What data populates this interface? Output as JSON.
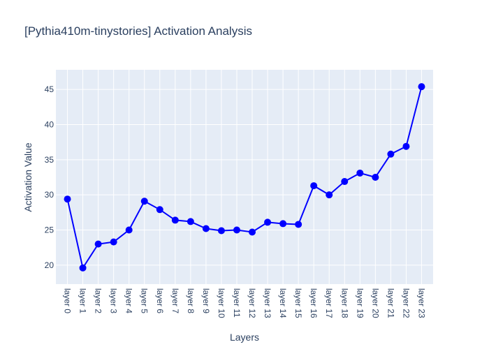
{
  "chart_data": {
    "type": "line",
    "title": "[Pythia410m-tinystories] Activation Analysis",
    "xlabel": "Layers",
    "ylabel": "Activation Value",
    "categories": [
      "layer 0",
      "layer 1",
      "layer 2",
      "layer 3",
      "layer 4",
      "layer 5",
      "layer 6",
      "layer 7",
      "layer 8",
      "layer 9",
      "layer 10",
      "layer 11",
      "layer 12",
      "layer 13",
      "layer 14",
      "layer 15",
      "layer 16",
      "layer 17",
      "layer 18",
      "layer 19",
      "layer 20",
      "layer 21",
      "layer 22",
      "layer 23"
    ],
    "series": [
      {
        "values": [
          29.4,
          19.6,
          23.0,
          23.3,
          25.0,
          29.1,
          27.9,
          26.4,
          26.2,
          25.2,
          24.9,
          25.0,
          24.7,
          26.1,
          25.9,
          25.8,
          31.3,
          30.0,
          31.9,
          33.1,
          32.5,
          35.8,
          36.9,
          45.4
        ]
      }
    ],
    "ylim": [
      17.3,
      47.8
    ],
    "yticks": [
      20,
      25,
      30,
      35,
      40,
      45
    ],
    "grid": true,
    "line_color": "#0000ff",
    "marker_color": "#0000ff",
    "plot_background": "#e5ecf6",
    "grid_color": "#ffffff",
    "text_color": "#2a3f5f"
  }
}
